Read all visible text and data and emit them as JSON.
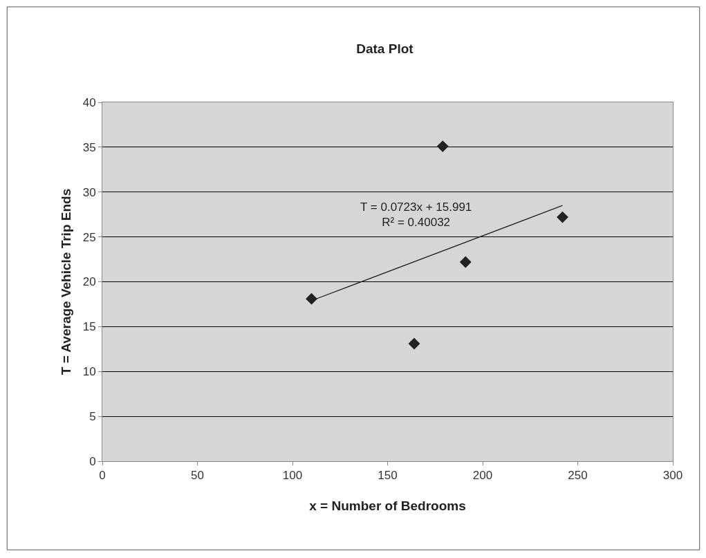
{
  "chart_data": {
    "type": "scatter",
    "title": "Data Plot",
    "xlabel": "x = Number of Bedrooms",
    "ylabel": "T = Average Vehicle Trip Ends",
    "series": [
      {
        "color": "#222222",
        "marker": "diamond",
        "x": [
          110,
          164,
          179,
          191,
          242
        ],
        "values": [
          18.1,
          13.1,
          35.1,
          22.2,
          27.2
        ]
      },
      {
        "type": "line",
        "color": "#222222",
        "marker": "none",
        "line_style": "solid",
        "x": [
          110,
          242
        ],
        "values": [
          17.9,
          28.5
        ]
      }
    ],
    "annotations": [
      "T = 0.0723x + 15.991\nR² = 0.40032"
    ],
    "xlim": [
      0,
      300
    ],
    "xticks": [
      0,
      50,
      100,
      150,
      200,
      250,
      300
    ],
    "ylim": [
      0,
      40
    ],
    "yticks": [
      0,
      5,
      10,
      15,
      20,
      25,
      30,
      35,
      40
    ],
    "grid": "y"
  }
}
